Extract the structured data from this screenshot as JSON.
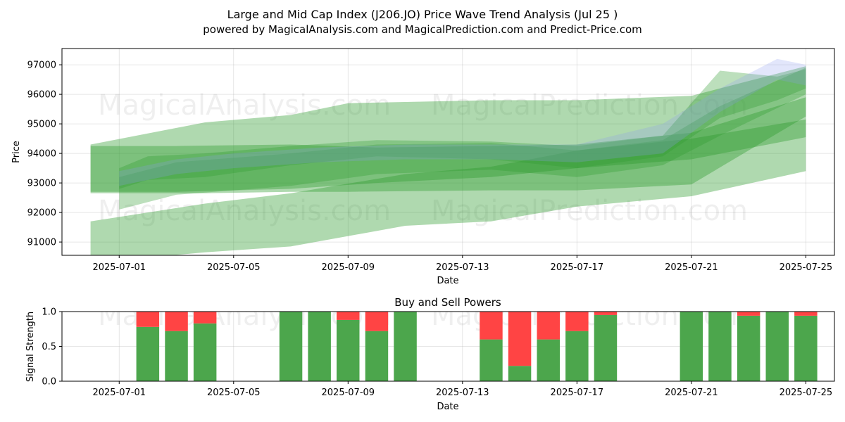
{
  "title_line1": "Large and Mid Cap Index (J206.JO) Price Wave Trend Analysis (Jul 25 )",
  "title_line2": "powered by MagicalAnalysis.com and MagicalPrediction.com and Predict-Price.com",
  "watermarks": [
    "MagicalAnalysis.com",
    "MagicalPrediction.com"
  ],
  "colors": {
    "wave": "#2e9b2e",
    "wave_alt": "#8a9af0",
    "buy": "#4ca64c",
    "sell": "#ff4444"
  },
  "chart_data": [
    {
      "type": "area",
      "xlabel": "Date",
      "ylabel": "Price",
      "xlim": [
        "2025-06-29",
        "2025-07-26"
      ],
      "ylim": [
        90550,
        97550
      ],
      "x_ticks": [
        "2025-07-01",
        "2025-07-05",
        "2025-07-09",
        "2025-07-13",
        "2025-07-17",
        "2025-07-21",
        "2025-07-25"
      ],
      "y_ticks": [
        91000,
        92000,
        93000,
        94000,
        95000,
        96000,
        97000
      ],
      "grid": true,
      "bands": [
        {
          "x": [
            "2025-06-30",
            "2025-07-04",
            "2025-07-07",
            "2025-07-09",
            "2025-07-14",
            "2025-07-17",
            "2025-07-21",
            "2025-07-25"
          ],
          "upper": [
            94300,
            95050,
            95300,
            95700,
            95800,
            95800,
            95950,
            96950
          ],
          "lower": [
            92650,
            92650,
            92700,
            92700,
            92750,
            92750,
            92950,
            95250
          ]
        },
        {
          "x": [
            "2025-06-30",
            "2025-07-04",
            "2025-07-07",
            "2025-07-11",
            "2025-07-14",
            "2025-07-17",
            "2025-07-21",
            "2025-07-25"
          ],
          "upper": [
            91700,
            92300,
            92650,
            93300,
            93550,
            94100,
            94500,
            95150
          ],
          "lower": [
            90300,
            90650,
            90850,
            91550,
            91700,
            92200,
            92550,
            93400
          ]
        },
        {
          "x": [
            "2025-06-30",
            "2025-07-03",
            "2025-07-07",
            "2025-07-10",
            "2025-07-14",
            "2025-07-17",
            "2025-07-21",
            "2025-07-25"
          ],
          "upper": [
            94250,
            94250,
            94300,
            94200,
            94250,
            94300,
            94700,
            95900
          ],
          "lower": [
            92700,
            92700,
            92800,
            93000,
            93200,
            93500,
            93800,
            94550
          ]
        },
        {
          "x": [
            "2025-07-01",
            "2025-07-03",
            "2025-07-07",
            "2025-07-10",
            "2025-07-14",
            "2025-07-17",
            "2025-07-20",
            "2025-07-22",
            "2025-07-25"
          ],
          "upper": [
            93200,
            93700,
            94000,
            94300,
            94350,
            94100,
            94450,
            95600,
            96900
          ],
          "lower": [
            92100,
            92600,
            92900,
            93300,
            93450,
            93200,
            93600,
            94600,
            96000
          ]
        },
        {
          "x": [
            "2025-07-01",
            "2025-07-02",
            "2025-07-04",
            "2025-07-07",
            "2025-07-10",
            "2025-07-14",
            "2025-07-17",
            "2025-07-20",
            "2025-07-22",
            "2025-07-24",
            "2025-07-25"
          ],
          "upper": [
            93500,
            93900,
            94000,
            94250,
            94450,
            94400,
            94250,
            94600,
            96800,
            96600,
            96850
          ],
          "lower": [
            92800,
            93100,
            93200,
            93600,
            93900,
            93800,
            93500,
            93900,
            95200,
            95800,
            96200
          ]
        },
        {
          "x": [
            "2025-07-01",
            "2025-07-03",
            "2025-07-05",
            "2025-07-08",
            "2025-07-11",
            "2025-07-14",
            "2025-07-17",
            "2025-07-20",
            "2025-07-22",
            "2025-07-24",
            "2025-07-25"
          ],
          "upper": [
            93400,
            93800,
            94000,
            94200,
            94300,
            94300,
            94300,
            95000,
            96200,
            97200,
            97000
          ],
          "lower": [
            92900,
            93300,
            93500,
            93700,
            93800,
            93800,
            93700,
            94000,
            95400,
            96500,
            96300
          ]
        }
      ]
    },
    {
      "type": "bar",
      "title": "Buy and Sell Powers",
      "xlabel": "Date",
      "ylabel": "Signal Strength",
      "xlim": [
        "2025-06-29",
        "2025-07-26"
      ],
      "ylim": [
        0,
        1
      ],
      "x_ticks": [
        "2025-07-01",
        "2025-07-05",
        "2025-07-09",
        "2025-07-13",
        "2025-07-17",
        "2025-07-21",
        "2025-07-25"
      ],
      "y_ticks": [
        0.0,
        0.5,
        1.0
      ],
      "grid": true,
      "dates": [
        "2025-07-02",
        "2025-07-03",
        "2025-07-04",
        "2025-07-07",
        "2025-07-08",
        "2025-07-09",
        "2025-07-10",
        "2025-07-11",
        "2025-07-14",
        "2025-07-15",
        "2025-07-16",
        "2025-07-17",
        "2025-07-18",
        "2025-07-21",
        "2025-07-22",
        "2025-07-23",
        "2025-07-24",
        "2025-07-25"
      ],
      "series": [
        {
          "name": "Buy",
          "values": [
            0.78,
            0.72,
            0.83,
            1.0,
            1.0,
            0.88,
            0.72,
            1.0,
            0.6,
            0.22,
            0.6,
            0.72,
            0.95,
            1.0,
            1.0,
            0.94,
            1.0,
            0.94
          ]
        },
        {
          "name": "Sell",
          "values": [
            0.22,
            0.28,
            0.17,
            0.0,
            0.0,
            0.12,
            0.28,
            0.0,
            0.4,
            0.78,
            0.4,
            0.28,
            0.05,
            0.0,
            0.0,
            0.06,
            0.0,
            0.06
          ]
        }
      ]
    }
  ]
}
